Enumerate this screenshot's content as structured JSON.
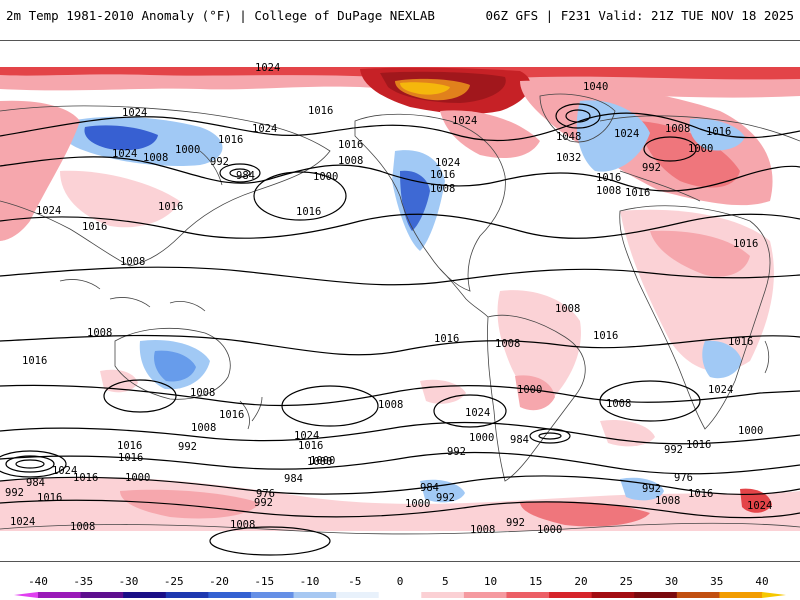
{
  "header": {
    "left_title": "2m Temp 1981-2010 Anomaly (°F) | College of DuPage NEXLAB",
    "right_title": "06Z GFS | F231 Valid: 21Z TUE NOV 18 2025"
  },
  "colors": {
    "background": "#ffffff",
    "contour": "#000000",
    "coast": "#444444",
    "warm_1": "#fbd0d4",
    "warm_2": "#f6a3a9",
    "warm_3": "#ef6f75",
    "warm_4": "#e23a3f",
    "warm_5": "#c4161b",
    "warm_6": "#9c0b10",
    "warm_7": "#e07b10",
    "warm_8": "#f5b400",
    "cold_1": "#cfe4fb",
    "cold_2": "#9cc7f5",
    "cold_3": "#5f97ea",
    "cold_4": "#2d58d0",
    "cold_5": "#1a2aa8"
  },
  "colorbar": {
    "ticks": [
      "-40",
      "-35",
      "-30",
      "-25",
      "-20",
      "-15",
      "-10",
      "-5",
      "0",
      "5",
      "10",
      "15",
      "20",
      "25",
      "30",
      "35",
      "40"
    ],
    "segment_colors": [
      "#e040f0",
      "#9a1ab8",
      "#5e0f8e",
      "#1a0f86",
      "#1e39b0",
      "#3462d2",
      "#6690e6",
      "#a7c8f2",
      "#e8f1fb",
      "#ffffff",
      "#fbd0d4",
      "#f59aa0",
      "#ec5f66",
      "#d6252b",
      "#a30d12",
      "#7a0a0e",
      "#c14f10",
      "#f29c00",
      "#f6c800"
    ]
  },
  "isobar_labels": [
    {
      "text": "1024"
    },
    {
      "text": "1024"
    },
    {
      "text": "1016"
    },
    {
      "text": "1024"
    },
    {
      "text": "1016"
    },
    {
      "text": "1024"
    },
    {
      "text": "1008"
    },
    {
      "text": "1000"
    },
    {
      "text": "992"
    },
    {
      "text": "984"
    },
    {
      "text": "1016"
    },
    {
      "text": "1008"
    },
    {
      "text": "1000"
    },
    {
      "text": "1016"
    },
    {
      "text": "1024"
    },
    {
      "text": "1016"
    },
    {
      "text": "1016"
    },
    {
      "text": "1008"
    },
    {
      "text": "1024"
    },
    {
      "text": "1016"
    },
    {
      "text": "1008"
    },
    {
      "text": "1024"
    },
    {
      "text": "1040"
    },
    {
      "text": "1048"
    },
    {
      "text": "1032"
    },
    {
      "text": "1024"
    },
    {
      "text": "1016"
    },
    {
      "text": "1008"
    },
    {
      "text": "1008"
    },
    {
      "text": "1016"
    },
    {
      "text": "1000"
    },
    {
      "text": "992"
    },
    {
      "text": "1016"
    },
    {
      "text": "1016"
    },
    {
      "text": "1008"
    },
    {
      "text": "1008"
    },
    {
      "text": "1016"
    },
    {
      "text": "1008"
    },
    {
      "text": "1016"
    },
    {
      "text": "1008"
    },
    {
      "text": "1016"
    },
    {
      "text": "1016"
    },
    {
      "text": "1008"
    },
    {
      "text": "1016"
    },
    {
      "text": "1008"
    },
    {
      "text": "1000"
    },
    {
      "text": "1016"
    },
    {
      "text": "1024"
    },
    {
      "text": "1008"
    },
    {
      "text": "1024"
    },
    {
      "text": "1000"
    },
    {
      "text": "984"
    },
    {
      "text": "992"
    },
    {
      "text": "1016"
    },
    {
      "text": "1024"
    },
    {
      "text": "1016"
    },
    {
      "text": "1008"
    },
    {
      "text": "992"
    },
    {
      "text": "1016"
    },
    {
      "text": "1000"
    },
    {
      "text": "992"
    },
    {
      "text": "984"
    },
    {
      "text": "1000"
    },
    {
      "text": "984"
    },
    {
      "text": "976"
    },
    {
      "text": "992"
    },
    {
      "text": "976"
    },
    {
      "text": "984"
    },
    {
      "text": "992"
    },
    {
      "text": "1000"
    },
    {
      "text": "992"
    },
    {
      "text": "1024"
    },
    {
      "text": "1016"
    },
    {
      "text": "1008"
    },
    {
      "text": "1008"
    },
    {
      "text": "1000"
    },
    {
      "text": "992"
    },
    {
      "text": "1024"
    },
    {
      "text": "1016"
    },
    {
      "text": "992"
    },
    {
      "text": "1016"
    },
    {
      "text": "1024"
    },
    {
      "text": "1008"
    },
    {
      "text": "1000"
    },
    {
      "text": "1000"
    }
  ]
}
